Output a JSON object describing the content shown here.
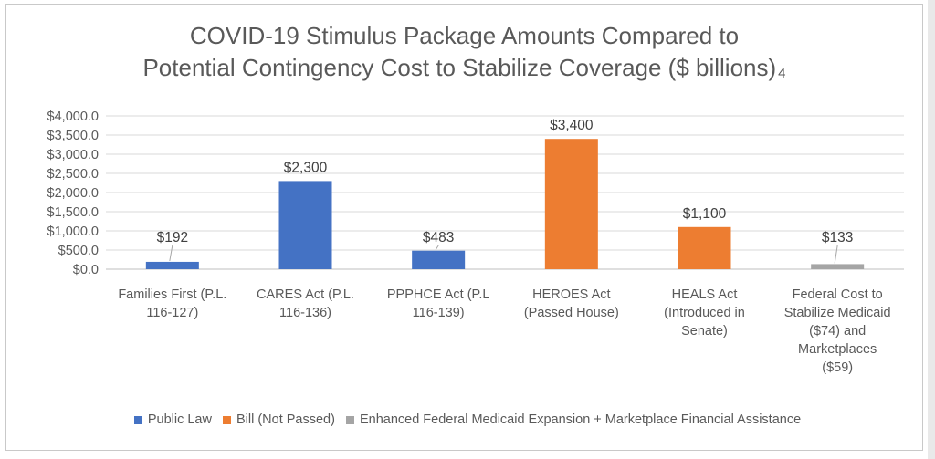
{
  "title": {
    "line1": "COVID-19 Stimulus Package Amounts Compared to",
    "line2": "Potential Contingency Cost to Stabilize Coverage ($ billions)",
    "superscript": "4"
  },
  "chart_data": {
    "type": "bar",
    "categories": [
      [
        "Families First (P.L.",
        "116-127)"
      ],
      [
        "CARES Act (P.L.",
        "116-136)"
      ],
      [
        "PPPHCE Act (P.L",
        "116-139)"
      ],
      [
        "HEROES Act",
        "(Passed House)"
      ],
      [
        "HEALS Act",
        "(Introduced in",
        "Senate)"
      ],
      [
        "Federal Cost to",
        "Stabilize Medicaid",
        "($74) and",
        "Marketplaces",
        "($59)"
      ]
    ],
    "values": [
      192,
      2300,
      483,
      3400,
      1100,
      133
    ],
    "data_labels": [
      "$192",
      "$2,300",
      "$483",
      "$3,400",
      "$1,100",
      "$133"
    ],
    "bar_series": [
      "Public Law",
      "Public Law",
      "Public Law",
      "Bill (Not Passed)",
      "Bill (Not Passed)",
      "Enhanced Federal Medicaid Expansion + Marketplace Financial Assistance"
    ],
    "series": [
      {
        "name": "Public Law",
        "color": "#4472c4"
      },
      {
        "name": "Bill (Not Passed)",
        "color": "#ed7d31"
      },
      {
        "name": "Enhanced Federal Medicaid Expansion + Marketplace Financial Assistance",
        "color": "#a5a5a5"
      }
    ],
    "y_ticks": [
      0,
      500,
      1000,
      1500,
      2000,
      2500,
      3000,
      3500,
      4000
    ],
    "y_tick_labels": [
      "$0.0",
      "$500.0",
      "$1,000.0",
      "$1,500.0",
      "$2,000.0",
      "$2,500.0",
      "$3,000.0",
      "$3,500.0",
      "$4,000.0"
    ],
    "ylim": [
      0,
      4000
    ],
    "grid": true,
    "legend_position": "bottom"
  }
}
